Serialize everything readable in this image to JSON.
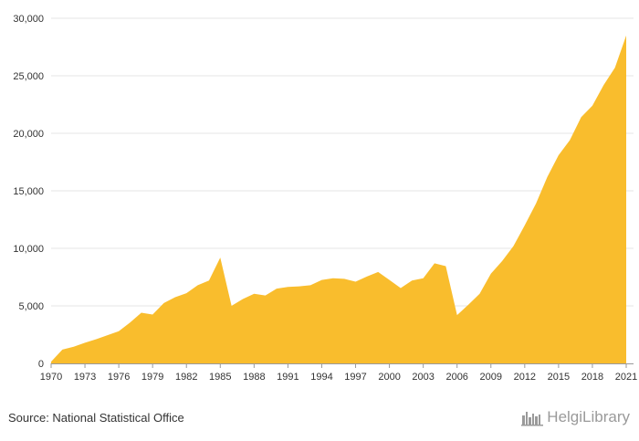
{
  "chart_data": {
    "type": "area",
    "x": [
      1970,
      1971,
      1972,
      1973,
      1974,
      1975,
      1976,
      1977,
      1978,
      1979,
      1980,
      1981,
      1982,
      1983,
      1984,
      1985,
      1986,
      1987,
      1988,
      1989,
      1990,
      1991,
      1992,
      1993,
      1994,
      1995,
      1996,
      1997,
      1998,
      1999,
      2000,
      2001,
      2002,
      2003,
      2004,
      2005,
      2006,
      2007,
      2008,
      2009,
      2010,
      2011,
      2012,
      2013,
      2014,
      2015,
      2016,
      2017,
      2018,
      2019,
      2020,
      2021
    ],
    "values": [
      150,
      1200,
      1450,
      1800,
      2100,
      2450,
      2800,
      3550,
      4400,
      4250,
      5250,
      5750,
      6100,
      6800,
      7200,
      9200,
      5000,
      5600,
      6050,
      5900,
      6500,
      6650,
      6700,
      6800,
      7250,
      7400,
      7350,
      7100,
      7550,
      7950,
      7250,
      6550,
      7200,
      7400,
      8700,
      8450,
      4200,
      5100,
      6050,
      7800,
      8900,
      10200,
      12000,
      13900,
      16200,
      18100,
      19400,
      21400,
      22400,
      24200,
      25700,
      28500
    ],
    "x_tick_labels": [
      "1970",
      "1973",
      "1976",
      "1979",
      "1982",
      "1985",
      "1988",
      "1991",
      "1994",
      "1997",
      "2000",
      "2003",
      "2006",
      "2009",
      "2012",
      "2015",
      "2018",
      "2021"
    ],
    "y_tick_labels": [
      "0",
      "5,000",
      "10,000",
      "15,000",
      "20,000",
      "25,000",
      "30,000"
    ],
    "y_ticks": [
      0,
      5000,
      10000,
      15000,
      20000,
      25000,
      30000
    ],
    "ylim": [
      0,
      30000
    ],
    "xlim": [
      1970,
      2021
    ],
    "grid": true,
    "fill_color": "#f9bd2d"
  },
  "footer": {
    "source": "Source: National Statistical Office",
    "brand": "HelgiLibrary",
    "brand_icon": "skyline-icon"
  }
}
